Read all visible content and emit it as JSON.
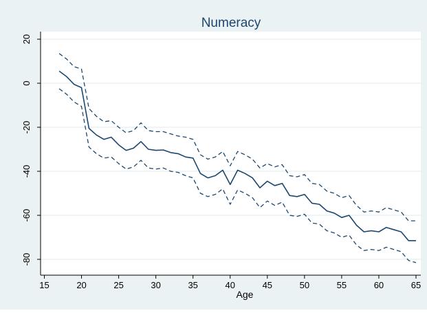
{
  "chart_data": {
    "type": "line",
    "title": "Numeracy",
    "xlabel": "Age",
    "ylabel": "",
    "xlim": [
      15,
      65
    ],
    "ylim": [
      -85,
      22
    ],
    "x_ticks": [
      15,
      20,
      25,
      30,
      35,
      40,
      45,
      50,
      55,
      60,
      65
    ],
    "y_ticks": [
      20,
      0,
      -20,
      -40,
      -60,
      -80
    ],
    "grid": "horizontal",
    "legend": "none",
    "colors": {
      "outer_background": "#eaf2f3",
      "plot_background": "#ffffff",
      "line": "#1a476f",
      "grid": "#eaf2f3",
      "axis": "#000000"
    },
    "x": [
      17,
      18,
      19,
      20,
      21,
      22,
      23,
      24,
      25,
      26,
      27,
      28,
      29,
      30,
      31,
      32,
      33,
      34,
      35,
      36,
      37,
      38,
      39,
      40,
      41,
      42,
      43,
      44,
      45,
      46,
      47,
      48,
      49,
      50,
      51,
      52,
      53,
      54,
      55,
      56,
      57,
      58,
      59,
      60,
      61,
      62,
      63,
      64,
      65
    ],
    "series": [
      {
        "role": "estimate",
        "style": "solid",
        "values": [
          5.5,
          3,
          -0.5,
          -2,
          -20.5,
          -23.5,
          -25.5,
          -24.5,
          -28,
          -30.5,
          -29.5,
          -26.5,
          -30,
          -30.5,
          -30.3,
          -31.5,
          -32,
          -33.5,
          -34,
          -41,
          -43,
          -42,
          -39.5,
          -46,
          -39.5,
          -41,
          -43,
          -47.5,
          -44.5,
          -46.5,
          -45.5,
          -51,
          -51.5,
          -50.5,
          -54.5,
          -55,
          -58,
          -59,
          -61,
          -60,
          -64.5,
          -67.5,
          -67,
          -67.5,
          -65.5,
          -66.5,
          -67.5,
          -71.5,
          -71.5
        ]
      },
      {
        "role": "upper_bound",
        "style": "dashed",
        "values": [
          13.5,
          11,
          7.5,
          6.5,
          -11.5,
          -15,
          -17.5,
          -17,
          -20,
          -22.5,
          -21.5,
          -18,
          -21.5,
          -22,
          -22,
          -23,
          -24,
          -24.5,
          -25.5,
          -32.5,
          -34.5,
          -33.5,
          -31,
          -37.5,
          -31,
          -32.5,
          -34.5,
          -38.5,
          -36.5,
          -38,
          -37,
          -42,
          -42.5,
          -41.5,
          -45.5,
          -46,
          -49,
          -50,
          -52,
          -51,
          -55.5,
          -58.5,
          -58,
          -58.5,
          -56.5,
          -57.5,
          -58.5,
          -62.5,
          -62.5
        ]
      },
      {
        "role": "lower_bound",
        "style": "dashed",
        "values": [
          -2.5,
          -5,
          -8.5,
          -10.5,
          -29,
          -32,
          -34,
          -33.5,
          -36.5,
          -39,
          -38,
          -35,
          -38.5,
          -39,
          -38.5,
          -40,
          -40.5,
          -42,
          -43,
          -50,
          -51.5,
          -50.5,
          -48,
          -55,
          -48.5,
          -50,
          -52,
          -56.5,
          -53.5,
          -55.5,
          -54,
          -60,
          -60.5,
          -59.5,
          -63.5,
          -64,
          -67,
          -68,
          -70,
          -69,
          -73.5,
          -76,
          -75.5,
          -76,
          -74.5,
          -75.5,
          -76.5,
          -80.5,
          -81.5
        ]
      }
    ]
  }
}
